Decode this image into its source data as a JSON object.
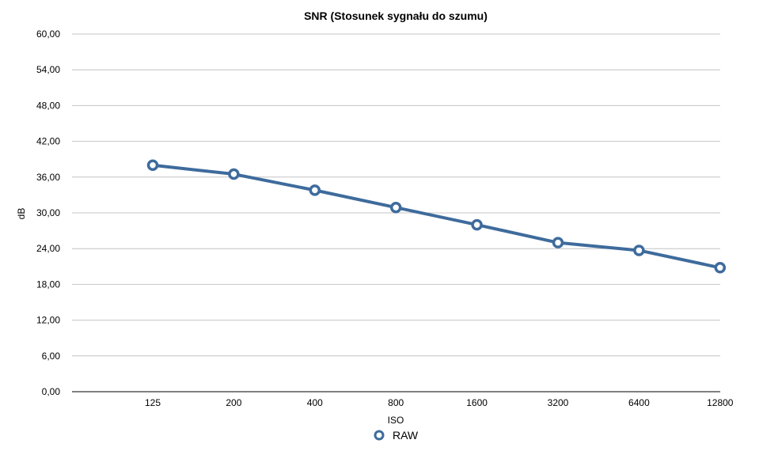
{
  "chart_data": {
    "type": "line",
    "title": "SNR (Stosunek sygnału do szumu)",
    "xlabel": "ISO",
    "ylabel": "dB",
    "categories": [
      "125",
      "200",
      "400",
      "800",
      "1600",
      "3200",
      "6400",
      "12800"
    ],
    "series": [
      {
        "name": "RAW",
        "values": [
          38.0,
          36.5,
          33.8,
          30.9,
          28.0,
          25.0,
          23.7,
          20.8
        ],
        "color": "#3e6b9c"
      }
    ],
    "ylim": [
      0,
      60
    ],
    "yticks": [
      "0,00",
      "6,00",
      "12,00",
      "18,00",
      "24,00",
      "30,00",
      "36,00",
      "42,00",
      "48,00",
      "54,00",
      "60,00"
    ],
    "grid": true,
    "legend": "bottom-center"
  }
}
